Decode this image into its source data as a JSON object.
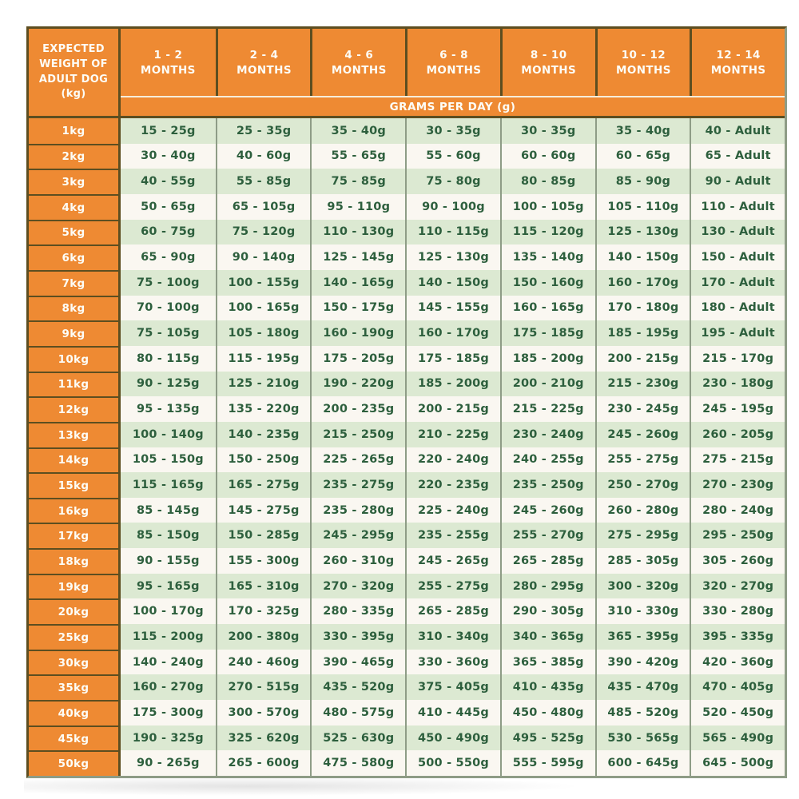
{
  "chart_data": {
    "type": "table",
    "corner_header_lines": [
      "EXPECTED",
      "WEIGHT OF",
      "ADULT DOG",
      "(kg)"
    ],
    "month_headers": [
      {
        "line1": "1 - 2",
        "line2": "MONTHS"
      },
      {
        "line1": "2 - 4",
        "line2": "MONTHS"
      },
      {
        "line1": "4 - 6",
        "line2": "MONTHS"
      },
      {
        "line1": "6 - 8",
        "line2": "MONTHS"
      },
      {
        "line1": "8 - 10",
        "line2": "MONTHS"
      },
      {
        "line1": "10 - 12",
        "line2": "MONTHS"
      },
      {
        "line1": "12 - 14",
        "line2": "MONTHS"
      }
    ],
    "units_banner": "GRAMS PER DAY (g)",
    "rows": [
      {
        "weight": "1kg",
        "values": [
          "15 - 25g",
          "25 - 35g",
          "35 - 40g",
          "30 - 35g",
          "30 - 35g",
          "35 - 40g",
          "40 - Adult"
        ]
      },
      {
        "weight": "2kg",
        "values": [
          "30 - 40g",
          "40 - 60g",
          "55 - 65g",
          "55 - 60g",
          "60 - 60g",
          "60 - 65g",
          "65 - Adult"
        ]
      },
      {
        "weight": "3kg",
        "values": [
          "40 - 55g",
          "55 - 85g",
          "75 - 85g",
          "75 - 80g",
          "80 - 85g",
          "85 - 90g",
          "90 - Adult"
        ]
      },
      {
        "weight": "4kg",
        "values": [
          "50 - 65g",
          "65 - 105g",
          "95 - 110g",
          "90 - 100g",
          "100 - 105g",
          "105 - 110g",
          "110 - Adult"
        ]
      },
      {
        "weight": "5kg",
        "values": [
          "60 - 75g",
          "75 - 120g",
          "110 - 130g",
          "110 - 115g",
          "115 - 120g",
          "125 - 130g",
          "130 - Adult"
        ]
      },
      {
        "weight": "6kg",
        "values": [
          "65 - 90g",
          "90 - 140g",
          "125 - 145g",
          "125 - 130g",
          "135 - 140g",
          "140 - 150g",
          "150 - Adult"
        ]
      },
      {
        "weight": "7kg",
        "values": [
          "75 - 100g",
          "100 - 155g",
          "140 - 165g",
          "140 - 150g",
          "150 - 160g",
          "160 - 170g",
          "170 - Adult"
        ]
      },
      {
        "weight": "8kg",
        "values": [
          "70 - 100g",
          "100 - 165g",
          "150 - 175g",
          "145 - 155g",
          "160 - 165g",
          "170 - 180g",
          "180 - Adult"
        ]
      },
      {
        "weight": "9kg",
        "values": [
          "75 - 105g",
          "105 - 180g",
          "160 - 190g",
          "160 - 170g",
          "175 - 185g",
          "185 - 195g",
          "195 - Adult"
        ]
      },
      {
        "weight": "10kg",
        "values": [
          "80 - 115g",
          "115 - 195g",
          "175 - 205g",
          "175 - 185g",
          "185 - 200g",
          "200 - 215g",
          "215 - 170g"
        ]
      },
      {
        "weight": "11kg",
        "values": [
          "90 - 125g",
          "125 - 210g",
          "190 - 220g",
          "185 - 200g",
          "200 - 210g",
          "215 - 230g",
          "230 - 180g"
        ]
      },
      {
        "weight": "12kg",
        "values": [
          "95 - 135g",
          "135 - 220g",
          "200 - 235g",
          "200 - 215g",
          "215 - 225g",
          "230 - 245g",
          "245 - 195g"
        ]
      },
      {
        "weight": "13kg",
        "values": [
          "100 - 140g",
          "140 - 235g",
          "215 - 250g",
          "210 - 225g",
          "230 - 240g",
          "245 - 260g",
          "260 - 205g"
        ]
      },
      {
        "weight": "14kg",
        "values": [
          "105 - 150g",
          "150 - 250g",
          "225 - 265g",
          "220 - 240g",
          "240 - 255g",
          "255 - 275g",
          "275 - 215g"
        ]
      },
      {
        "weight": "15kg",
        "values": [
          "115 - 165g",
          "165 - 275g",
          "235 - 275g",
          "220 - 235g",
          "235 - 250g",
          "250 - 270g",
          "270 - 230g"
        ]
      },
      {
        "weight": "16kg",
        "values": [
          "85 - 145g",
          "145 - 275g",
          "235 - 280g",
          "225 - 240g",
          "245 - 260g",
          "260 - 280g",
          "280 - 240g"
        ]
      },
      {
        "weight": "17kg",
        "values": [
          "85 - 150g",
          "150 - 285g",
          "245 - 295g",
          "235 - 255g",
          "255 - 270g",
          "275 - 295g",
          "295 - 250g"
        ]
      },
      {
        "weight": "18kg",
        "values": [
          "90 - 155g",
          "155 - 300g",
          "260 - 310g",
          "245 - 265g",
          "265 - 285g",
          "285 - 305g",
          "305 - 260g"
        ]
      },
      {
        "weight": "19kg",
        "values": [
          "95 - 165g",
          "165 - 310g",
          "270 - 320g",
          "255 - 275g",
          "280 - 295g",
          "300 - 320g",
          "320 - 270g"
        ]
      },
      {
        "weight": "20kg",
        "values": [
          "100 - 170g",
          "170 - 325g",
          "280 - 335g",
          "265 - 285g",
          "290 - 305g",
          "310 - 330g",
          "330 - 280g"
        ]
      },
      {
        "weight": "25kg",
        "values": [
          "115 - 200g",
          "200 - 380g",
          "330 - 395g",
          "310 - 340g",
          "340 - 365g",
          "365 - 395g",
          "395 - 335g"
        ]
      },
      {
        "weight": "30kg",
        "values": [
          "140 - 240g",
          "240 - 460g",
          "390 - 465g",
          "330 - 360g",
          "365 - 385g",
          "390 - 420g",
          "420 - 360g"
        ]
      },
      {
        "weight": "35kg",
        "values": [
          "160 - 270g",
          "270 - 515g",
          "435 - 520g",
          "375 - 405g",
          "410 - 435g",
          "435 - 470g",
          "470 - 405g"
        ]
      },
      {
        "weight": "40kg",
        "values": [
          "175 - 300g",
          "300 - 570g",
          "480 - 575g",
          "410 - 445g",
          "450 - 480g",
          "485 - 520g",
          "520 - 450g"
        ]
      },
      {
        "weight": "45kg",
        "values": [
          "190 - 325g",
          "325 - 620g",
          "525 - 630g",
          "450 - 490g",
          "495 - 525g",
          "530 - 565g",
          "565 - 490g"
        ]
      },
      {
        "weight": "50kg",
        "values": [
          "90 - 265g",
          "265 - 600g",
          "475 - 580g",
          "500 - 550g",
          "555 - 595g",
          "600 - 645g",
          "645 - 500g"
        ]
      }
    ]
  },
  "colors": {
    "orange": "#EE8A33",
    "border_dark": "#5D4E20",
    "divider_green": "#8E9C86",
    "row_green": "#DCE9D2",
    "row_white": "#FAF7F1",
    "text_green": "#2D5F3D",
    "header_text": "#FDFDF7"
  }
}
